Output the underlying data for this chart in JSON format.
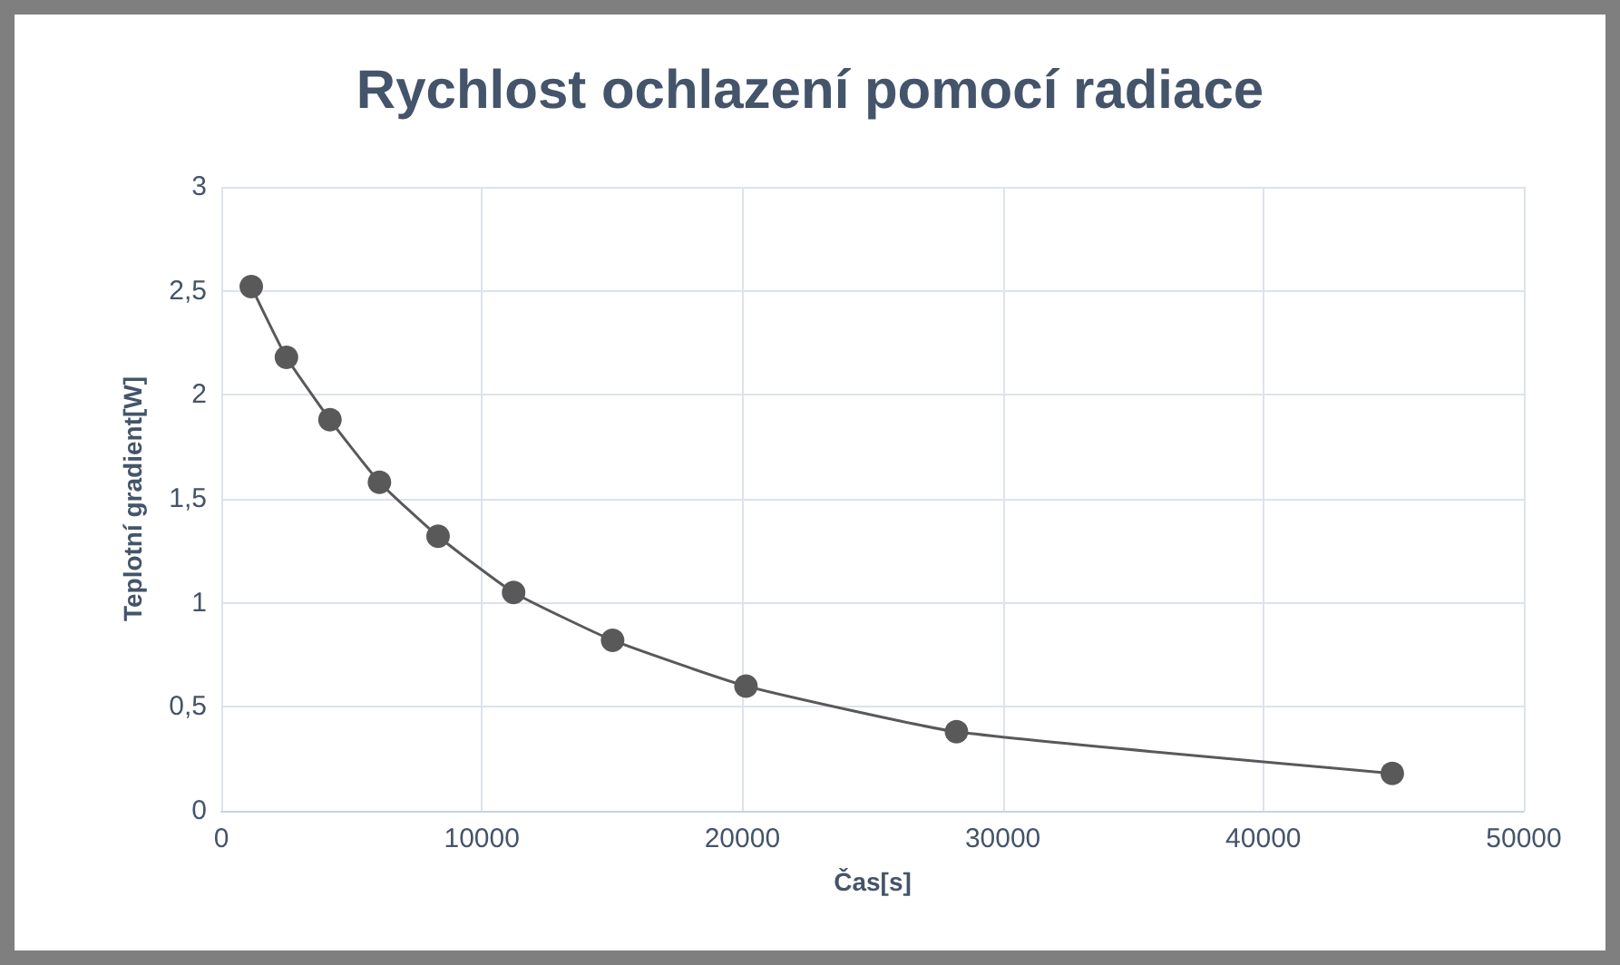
{
  "chart_data": {
    "type": "line",
    "title": "Rychlost ochlazení pomocí radiace",
    "xlabel": "Čas[s]",
    "ylabel": "Teplotní gradient[W]",
    "x": [
      1150,
      2500,
      4170,
      6070,
      8320,
      11220,
      15020,
      20140,
      28220,
      44950
    ],
    "series": [
      {
        "color": "#595959",
        "values": [
          2.52,
          2.18,
          1.88,
          1.58,
          1.32,
          1.05,
          0.82,
          0.6,
          0.38,
          0.18
        ]
      }
    ],
    "xlim": [
      0,
      50000
    ],
    "xticks": [
      0,
      10000,
      20000,
      30000,
      40000,
      50000
    ],
    "ylim": [
      0,
      3
    ],
    "yticks": [
      {
        "value": 0,
        "label": "0"
      },
      {
        "value": 0.5,
        "label": "0,5"
      },
      {
        "value": 1,
        "label": "1"
      },
      {
        "value": 1.5,
        "label": "1,5"
      },
      {
        "value": 2,
        "label": "2"
      },
      {
        "value": 2.5,
        "label": "2,5"
      },
      {
        "value": 3,
        "label": "3"
      }
    ],
    "grid": true,
    "marker": "circle",
    "line_style": "solid"
  }
}
